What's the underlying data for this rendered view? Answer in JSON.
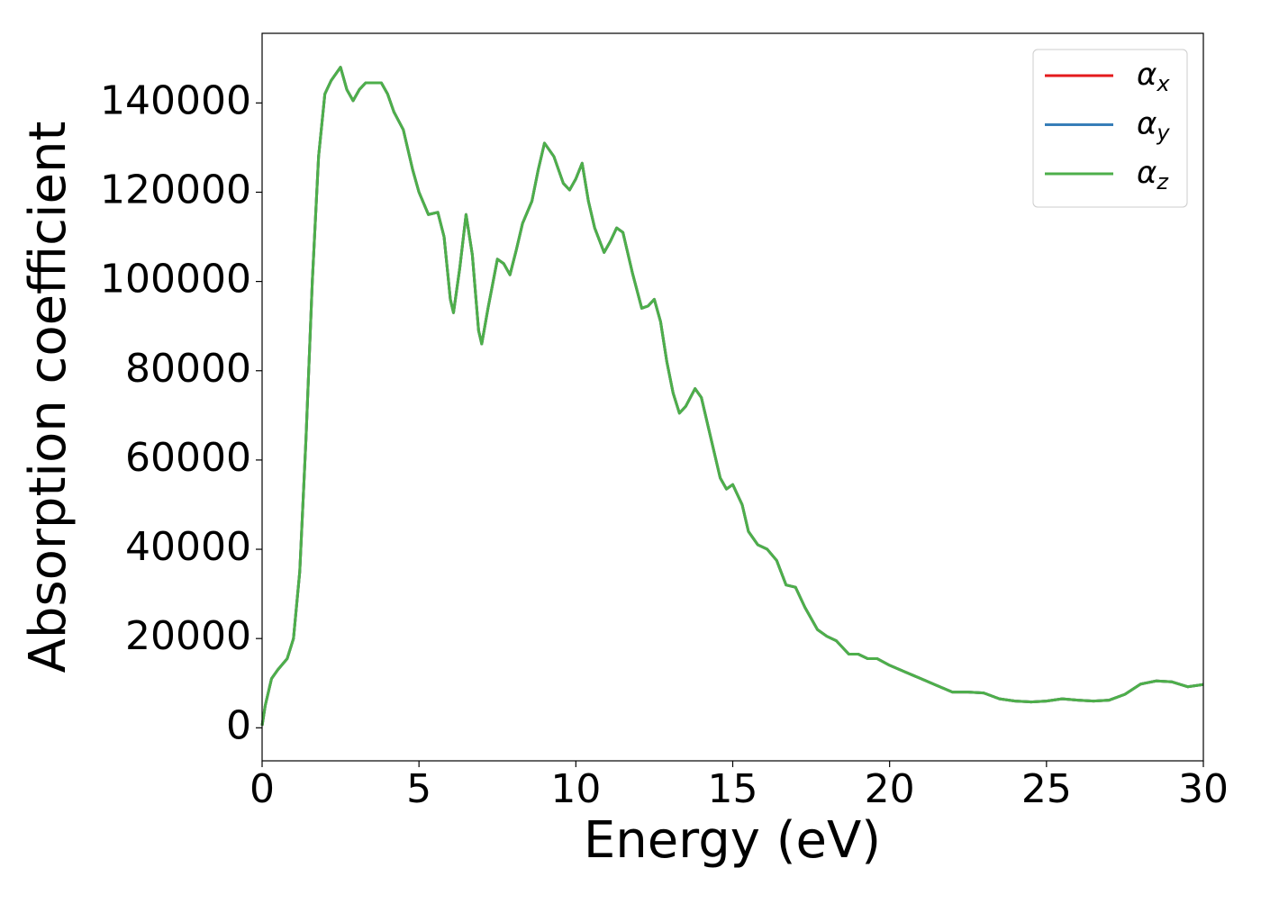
{
  "chart_data": {
    "type": "line",
    "xlabel": "Energy (eV)",
    "ylabel": "Absorption coefficient",
    "x": [
      0,
      0.1,
      0.3,
      0.5,
      0.8,
      1.0,
      1.2,
      1.4,
      1.6,
      1.8,
      2.0,
      2.2,
      2.5,
      2.7,
      2.9,
      3.1,
      3.3,
      3.6,
      3.8,
      4.0,
      4.2,
      4.5,
      4.8,
      5.0,
      5.3,
      5.6,
      5.8,
      6.0,
      6.1,
      6.3,
      6.5,
      6.7,
      6.9,
      7.0,
      7.2,
      7.5,
      7.7,
      7.9,
      8.1,
      8.3,
      8.6,
      8.8,
      9.0,
      9.3,
      9.6,
      9.8,
      10.0,
      10.2,
      10.4,
      10.6,
      10.9,
      11.1,
      11.3,
      11.5,
      11.8,
      12.1,
      12.3,
      12.5,
      12.7,
      12.9,
      13.1,
      13.3,
      13.5,
      13.8,
      14.0,
      14.3,
      14.6,
      14.8,
      15.0,
      15.3,
      15.5,
      15.8,
      16.1,
      16.4,
      16.7,
      17.0,
      17.3,
      17.7,
      18.0,
      18.3,
      18.7,
      19.0,
      19.3,
      19.6,
      20.0,
      20.5,
      21.0,
      21.5,
      22.0,
      22.5,
      23.0,
      23.5,
      24.0,
      24.5,
      25.0,
      25.5,
      26.0,
      26.5,
      27.0,
      27.5,
      28.0,
      28.5,
      29.0,
      29.5,
      30.0
    ],
    "series": [
      {
        "name": "αx",
        "color": "#e41a1c",
        "values": [
          500,
          5000,
          11000,
          13000,
          15500,
          20000,
          35000,
          65000,
          100000,
          128000,
          142000,
          145000,
          148000,
          143000,
          140500,
          143000,
          144500,
          144500,
          144500,
          142000,
          138000,
          134000,
          125000,
          120000,
          115000,
          115500,
          110000,
          96000,
          93000,
          103000,
          115000,
          106000,
          89000,
          86000,
          94000,
          105000,
          104000,
          101500,
          107000,
          113000,
          118000,
          125000,
          131000,
          128000,
          122000,
          120500,
          123000,
          126500,
          118000,
          112000,
          106500,
          109000,
          112000,
          111000,
          102000,
          94000,
          94500,
          96000,
          91000,
          82000,
          75000,
          70500,
          72000,
          76000,
          74000,
          65000,
          56000,
          53500,
          54500,
          50000,
          44000,
          41000,
          40000,
          37500,
          32000,
          31500,
          27000,
          22000,
          20500,
          19500,
          16500,
          16500,
          15500,
          15500,
          14000,
          12500,
          11000,
          9500,
          8000,
          8000,
          7800,
          6500,
          6000,
          5800,
          6000,
          6500,
          6200,
          6000,
          6200,
          7500,
          9800,
          10500,
          10300,
          9200,
          9700
        ]
      },
      {
        "name": "αy",
        "color": "#377eb8",
        "values": [
          500,
          5000,
          11000,
          13000,
          15500,
          20000,
          35000,
          65000,
          100000,
          128000,
          142000,
          145000,
          148000,
          143000,
          140500,
          143000,
          144500,
          144500,
          144500,
          142000,
          138000,
          134000,
          125000,
          120000,
          115000,
          115500,
          110000,
          96000,
          93000,
          103000,
          115000,
          106000,
          89000,
          86000,
          94000,
          105000,
          104000,
          101500,
          107000,
          113000,
          118000,
          125000,
          131000,
          128000,
          122000,
          120500,
          123000,
          126500,
          118000,
          112000,
          106500,
          109000,
          112000,
          111000,
          102000,
          94000,
          94500,
          96000,
          91000,
          82000,
          75000,
          70500,
          72000,
          76000,
          74000,
          65000,
          56000,
          53500,
          54500,
          50000,
          44000,
          41000,
          40000,
          37500,
          32000,
          31500,
          27000,
          22000,
          20500,
          19500,
          16500,
          16500,
          15500,
          15500,
          14000,
          12500,
          11000,
          9500,
          8000,
          8000,
          7800,
          6500,
          6000,
          5800,
          6000,
          6500,
          6200,
          6000,
          6200,
          7500,
          9800,
          10500,
          10300,
          9200,
          9700
        ]
      },
      {
        "name": "αz",
        "color": "#4daf4a",
        "values": [
          500,
          5000,
          11000,
          13000,
          15500,
          20000,
          35000,
          65000,
          100000,
          128000,
          142000,
          145000,
          148000,
          143000,
          140500,
          143000,
          144500,
          144500,
          144500,
          142000,
          138000,
          134000,
          125000,
          120000,
          115000,
          115500,
          110000,
          96000,
          93000,
          103000,
          115000,
          106000,
          89000,
          86000,
          94000,
          105000,
          104000,
          101500,
          107000,
          113000,
          118000,
          125000,
          131000,
          128000,
          122000,
          120500,
          123000,
          126500,
          118000,
          112000,
          106500,
          109000,
          112000,
          111000,
          102000,
          94000,
          94500,
          96000,
          91000,
          82000,
          75000,
          70500,
          72000,
          76000,
          74000,
          65000,
          56000,
          53500,
          54500,
          50000,
          44000,
          41000,
          40000,
          37500,
          32000,
          31500,
          27000,
          22000,
          20500,
          19500,
          16500,
          16500,
          15500,
          15500,
          14000,
          12500,
          11000,
          9500,
          8000,
          8000,
          7800,
          6500,
          6000,
          5800,
          6000,
          6500,
          6200,
          6000,
          6200,
          7500,
          9800,
          10500,
          10300,
          9200,
          9700
        ]
      }
    ],
    "xlim": [
      0,
      30
    ],
    "xticks": [
      0,
      5,
      10,
      15,
      20,
      25,
      30
    ],
    "ylim": [
      -7400,
      155600
    ],
    "yticks": [
      0,
      20000,
      40000,
      60000,
      80000,
      100000,
      120000,
      140000
    ],
    "grid": false,
    "legend": "upper right"
  }
}
